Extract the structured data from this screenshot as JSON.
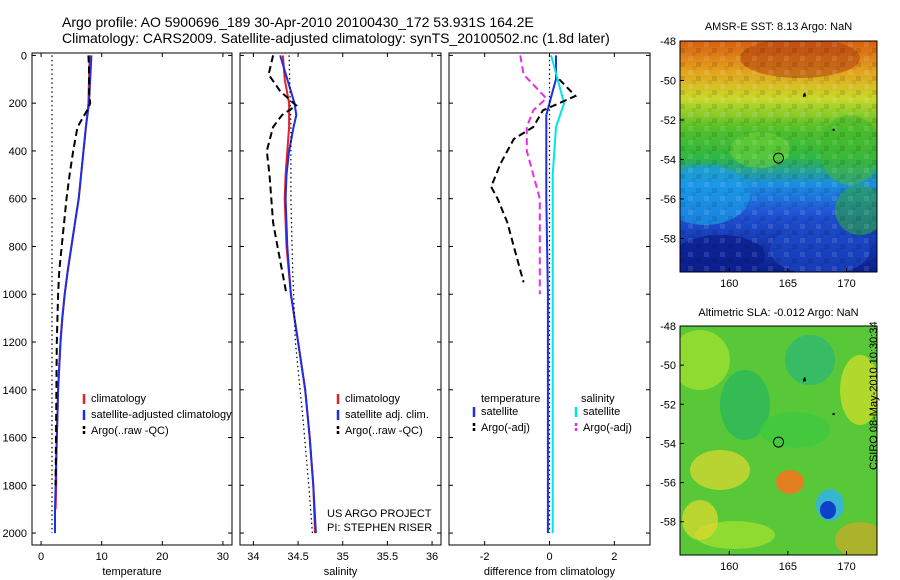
{
  "header": {
    "line1": "Argo profile: AO 5900696_189 30-Apr-2010 20100430_172 53.931S 164.2E",
    "line2": "Climatology: CARS2009. Satellite-adjusted climatology: synTS_20100502.nc (1.8d later)"
  },
  "side_label": "CSIRO 08-May-2010 10:30:34",
  "colors": {
    "climatology": "#e8202a",
    "satellite": "#1f2ee0",
    "argo": "#000000",
    "satellite_salinity": "#00e5e5",
    "argo_salinity_diff": "#e62ee6"
  },
  "chart_data": [
    {
      "id": "temperature",
      "type": "line",
      "xlabel": "temperature",
      "ylabel": "",
      "xlim": [
        -1.5,
        31.5
      ],
      "ylim": [
        2050,
        -10
      ],
      "xticks": [
        0,
        10,
        20,
        30
      ],
      "yticks": [
        0,
        200,
        400,
        600,
        800,
        1000,
        1200,
        1400,
        1600,
        1800,
        2000
      ],
      "legend": [
        "climatology",
        "satellite-adjusted climatology",
        "Argo(..raw -QC)"
      ],
      "series": [
        {
          "name": "climatology",
          "color": "#e8202a",
          "style": "solid",
          "depth": [
            0,
            100,
            200,
            300,
            400,
            500,
            600,
            700,
            800,
            900,
            1000,
            1100,
            1200,
            1300,
            1400,
            1500,
            1600,
            1700,
            1800,
            1900
          ],
          "value": [
            8.0,
            7.9,
            7.8,
            7.4,
            7.0,
            6.6,
            6.2,
            5.6,
            5.0,
            4.4,
            3.9,
            3.5,
            3.2,
            3.0,
            2.8,
            2.7,
            2.6,
            2.5,
            2.5,
            2.4
          ]
        },
        {
          "name": "satellite-adjusted climatology",
          "color": "#1f2ee0",
          "style": "solid",
          "depth": [
            0,
            100,
            200,
            300,
            400,
            500,
            600,
            700,
            800,
            900,
            1000,
            1100,
            1200,
            1300,
            1400,
            1500,
            1600,
            1700,
            1800,
            1900,
            2000
          ],
          "value": [
            8.3,
            8.1,
            7.9,
            7.4,
            7.0,
            6.6,
            6.2,
            5.6,
            5.0,
            4.4,
            3.9,
            3.5,
            3.2,
            3.0,
            2.8,
            2.7,
            2.6,
            2.5,
            2.4,
            2.3,
            2.3
          ]
        },
        {
          "name": "Argo(..raw -QC)",
          "color": "#000000",
          "style": "dashed",
          "depth": [
            0,
            50,
            150,
            200,
            230,
            300,
            400,
            500,
            600,
            700,
            800,
            900,
            1000,
            1200,
            1500,
            1800
          ],
          "value": [
            7.8,
            7.9,
            7.9,
            8.1,
            7.6,
            6.0,
            5.3,
            4.7,
            4.2,
            3.8,
            3.4,
            3.0,
            2.8,
            2.6,
            2.5,
            2.4
          ]
        },
        {
          "name": "",
          "color": "#000000",
          "style": "dotted",
          "depth": [
            0,
            2000
          ],
          "value": [
            1.8,
            1.8
          ]
        }
      ]
    },
    {
      "id": "salinity",
      "type": "line",
      "xlabel": "salinity",
      "ylabel": "",
      "xlim": [
        33.85,
        36.1
      ],
      "ylim": [
        2050,
        -10
      ],
      "xticks": [
        34,
        34.5,
        35,
        35.5,
        36
      ],
      "yticks": [
        0,
        200,
        400,
        600,
        800,
        1000,
        1200,
        1400,
        1600,
        1800,
        2000
      ],
      "legend": [
        "climatology",
        "satellite adj. clim.",
        "Argo(..raw -QC)"
      ],
      "annotations": [
        "US ARGO PROJECT",
        "PI: STEPHEN RISER"
      ],
      "series": [
        {
          "name": "climatology",
          "color": "#e8202a",
          "style": "solid",
          "depth": [
            0,
            100,
            200,
            300,
            400,
            500,
            600,
            800,
            1000,
            1200,
            1400,
            1600,
            1800,
            2000
          ],
          "value": [
            34.33,
            34.35,
            34.4,
            34.4,
            34.38,
            34.36,
            34.35,
            34.37,
            34.42,
            34.5,
            34.58,
            34.63,
            34.67,
            34.69
          ]
        },
        {
          "name": "satellite adj. clim.",
          "color": "#1f2ee0",
          "style": "solid",
          "depth": [
            0,
            100,
            200,
            250,
            300,
            400,
            500,
            600,
            800,
            1000,
            1200,
            1400,
            1600,
            1800,
            2000
          ],
          "value": [
            34.3,
            34.38,
            34.46,
            34.48,
            34.45,
            34.4,
            34.37,
            34.36,
            34.38,
            34.42,
            34.5,
            34.58,
            34.63,
            34.67,
            34.7
          ]
        },
        {
          "name": "Argo(..raw -QC)",
          "color": "#000000",
          "style": "dashed",
          "depth": [
            0,
            80,
            150,
            210,
            250,
            300,
            400,
            500,
            600,
            700,
            800,
            900,
            1000
          ],
          "value": [
            34.22,
            34.17,
            34.3,
            34.48,
            34.32,
            34.22,
            34.15,
            34.18,
            34.2,
            34.22,
            34.27,
            34.32,
            34.37
          ]
        },
        {
          "name": "",
          "color": "#000000",
          "style": "dotted",
          "depth": [
            0,
            300,
            600,
            900,
            1200,
            1500,
            1800,
            2000
          ],
          "value": [
            34.4,
            34.42,
            34.42,
            34.44,
            34.47,
            34.55,
            34.62,
            34.66
          ]
        }
      ]
    },
    {
      "id": "difference",
      "type": "line",
      "xlabel": "difference from climatology",
      "ylabel": "",
      "xlim": [
        -3.1,
        3.1
      ],
      "ylim": [
        2050,
        -10
      ],
      "xticks": [
        -2,
        0,
        2
      ],
      "yticks": [
        0,
        200,
        400,
        600,
        800,
        1000,
        1200,
        1400,
        1600,
        1800,
        2000
      ],
      "legend": [
        "temperature",
        "satellite",
        "Argo(-adj)",
        "salinity",
        "satellite",
        "Argo(-adj)"
      ],
      "series": [
        {
          "name": "satellite",
          "group": "temperature",
          "color": "#1f2ee0",
          "style": "solid",
          "depth": [
            0,
            100,
            150,
            250,
            400,
            600,
            1000,
            1400,
            1800,
            2000
          ],
          "value": [
            0.2,
            0.2,
            0.1,
            -0.1,
            -0.1,
            -0.1,
            -0.05,
            -0.05,
            -0.05,
            -0.05
          ]
        },
        {
          "name": "satellite",
          "group": "salinity",
          "color": "#00e5e5",
          "style": "solid",
          "depth": [
            0,
            100,
            200,
            300,
            500,
            1000,
            1500,
            2000
          ],
          "value": [
            0.05,
            0.25,
            0.45,
            0.2,
            0.1,
            0.1,
            0.1,
            0.1
          ]
        },
        {
          "name": "Argo(-adj)",
          "group": "temperature",
          "color": "#000000",
          "style": "dashed",
          "depth": [
            100,
            170,
            200,
            230,
            300,
            350,
            450,
            550,
            600,
            700,
            800,
            900,
            950
          ],
          "value": [
            0.3,
            0.8,
            0.3,
            -0.2,
            -0.5,
            -1.1,
            -1.5,
            -1.8,
            -1.6,
            -1.3,
            -1.1,
            -0.9,
            -0.8
          ]
        },
        {
          "name": "Argo(-adj)",
          "group": "salinity",
          "color": "#e62ee6",
          "style": "dashed",
          "depth": [
            0,
            80,
            180,
            230,
            300,
            400,
            600,
            800,
            1000
          ],
          "value": [
            -0.9,
            -0.8,
            -0.1,
            -0.5,
            -0.7,
            -0.7,
            -0.3,
            -0.3,
            -0.3
          ]
        },
        {
          "name": "",
          "color": "#000000",
          "style": "dotted",
          "depth": [
            0,
            2000
          ],
          "value": [
            0,
            0
          ]
        }
      ]
    },
    {
      "id": "sst_map",
      "type": "heatmap",
      "title": "AMSR-E SST: 8.13  Argo: NaN",
      "xlim": [
        155.8,
        172.6
      ],
      "ylim": [
        -59.7,
        -48
      ],
      "xticks": [
        160,
        165,
        170
      ],
      "yticks": [
        -48,
        -50,
        -52,
        -54,
        -56,
        -58
      ],
      "marker": [
        164.2,
        -53.93
      ]
    },
    {
      "id": "sla_map",
      "type": "heatmap",
      "title": "Altimetric SLA: -0.012  Argo: NaN",
      "xlim": [
        155.8,
        172.6
      ],
      "ylim": [
        -59.7,
        -48
      ],
      "xticks": [
        160,
        165,
        170
      ],
      "yticks": [
        -48,
        -50,
        -52,
        -54,
        -56,
        -58
      ],
      "marker": [
        164.2,
        -53.93
      ]
    }
  ]
}
